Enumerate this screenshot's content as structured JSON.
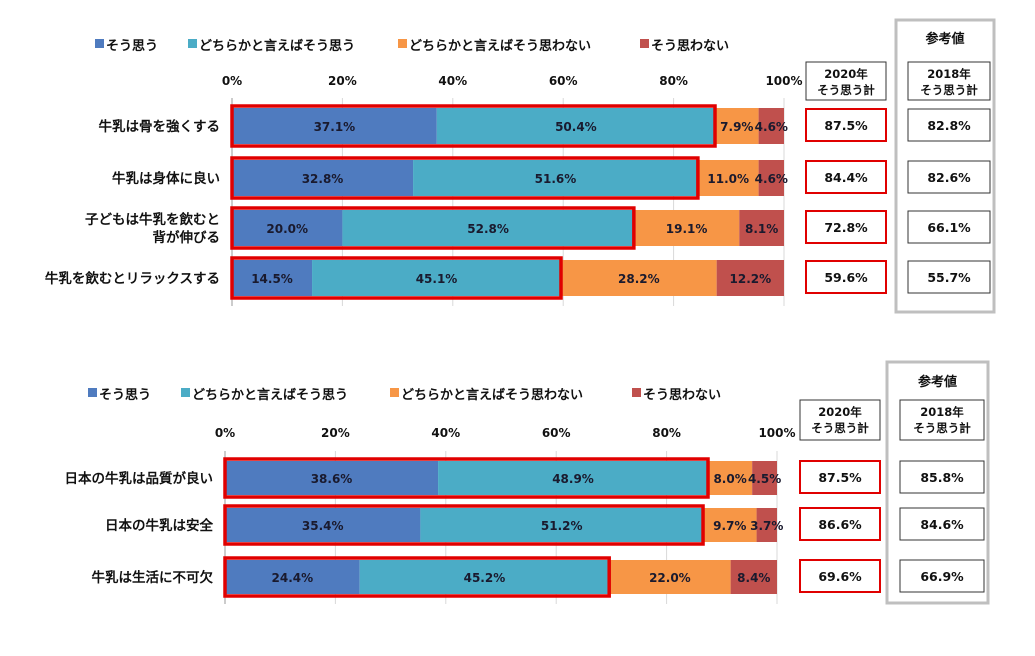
{
  "colors": {
    "s1": "#4f7bbf",
    "s2": "#4bacc6",
    "s3": "#f79646",
    "s4": "#c0504d",
    "highlight": "#e00000",
    "refbox": "#bfbfbf"
  },
  "chart_data": [
    {
      "type": "bar",
      "orientation": "horizontal",
      "stacked": true,
      "legend_position": "top",
      "xlim": [
        0,
        100
      ],
      "x_ticks": [
        "0%",
        "20%",
        "40%",
        "60%",
        "80%",
        "100%"
      ],
      "categories": [
        [
          "牛乳は骨を強くする"
        ],
        [
          "牛乳は身体に良い"
        ],
        [
          "子どもは牛乳を飲むと",
          "背が伸びる"
        ],
        [
          "牛乳を飲むとリラックスする"
        ]
      ],
      "series": [
        {
          "name": "そう思う",
          "values": [
            37.1,
            32.8,
            20.0,
            14.5
          ],
          "labels": [
            "37.1%",
            "32.8%",
            "20.0%",
            "14.5%"
          ]
        },
        {
          "name": "どちらかと言えばそう思う",
          "values": [
            50.4,
            51.6,
            52.8,
            45.1
          ],
          "labels": [
            "50.4%",
            "51.6%",
            "52.8%",
            "45.1%"
          ]
        },
        {
          "name": "どちらかと言えばそう思わない",
          "values": [
            7.9,
            11.0,
            19.1,
            28.2
          ],
          "labels": [
            "7.9%",
            "11.0%",
            "19.1%",
            "28.2%"
          ]
        },
        {
          "name": "そう思わない",
          "values": [
            4.6,
            4.6,
            8.1,
            12.2
          ],
          "labels": [
            "4.6%",
            "4.6%",
            "8.1%",
            "12.2%"
          ]
        }
      ],
      "total_2020": {
        "header": [
          "2020年",
          "そう思う計"
        ],
        "values": [
          "87.5%",
          "84.4%",
          "72.8%",
          "59.6%"
        ]
      },
      "reference": {
        "title": "参考値",
        "header": [
          "2018年",
          "そう思う計"
        ],
        "values": [
          "82.8%",
          "82.6%",
          "66.1%",
          "55.7%"
        ]
      }
    },
    {
      "type": "bar",
      "orientation": "horizontal",
      "stacked": true,
      "legend_position": "top",
      "xlim": [
        0,
        100
      ],
      "x_ticks": [
        "0%",
        "20%",
        "40%",
        "60%",
        "80%",
        "100%"
      ],
      "categories": [
        [
          "日本の牛乳は品質が良い"
        ],
        [
          "日本の牛乳は安全"
        ],
        [
          "牛乳は生活に不可欠"
        ]
      ],
      "series": [
        {
          "name": "そう思う",
          "values": [
            38.6,
            35.4,
            24.4
          ],
          "labels": [
            "38.6%",
            "35.4%",
            "24.4%"
          ]
        },
        {
          "name": "どちらかと言えばそう思う",
          "values": [
            48.9,
            51.2,
            45.2
          ],
          "labels": [
            "48.9%",
            "51.2%",
            "45.2%"
          ]
        },
        {
          "name": "どちらかと言えばそう思わない",
          "values": [
            8.0,
            9.7,
            22.0
          ],
          "labels": [
            "8.0%",
            "9.7%",
            "22.0%"
          ]
        },
        {
          "name": "そう思わない",
          "values": [
            4.5,
            3.7,
            8.4
          ],
          "labels": [
            "4.5%",
            "3.7%",
            "8.4%"
          ]
        }
      ],
      "total_2020": {
        "header": [
          "2020年",
          "そう思う計"
        ],
        "values": [
          "87.5%",
          "86.6%",
          "69.6%"
        ]
      },
      "reference": {
        "title": "参考値",
        "header": [
          "2018年",
          "そう思う計"
        ],
        "values": [
          "85.8%",
          "84.6%",
          "66.9%"
        ]
      }
    }
  ]
}
